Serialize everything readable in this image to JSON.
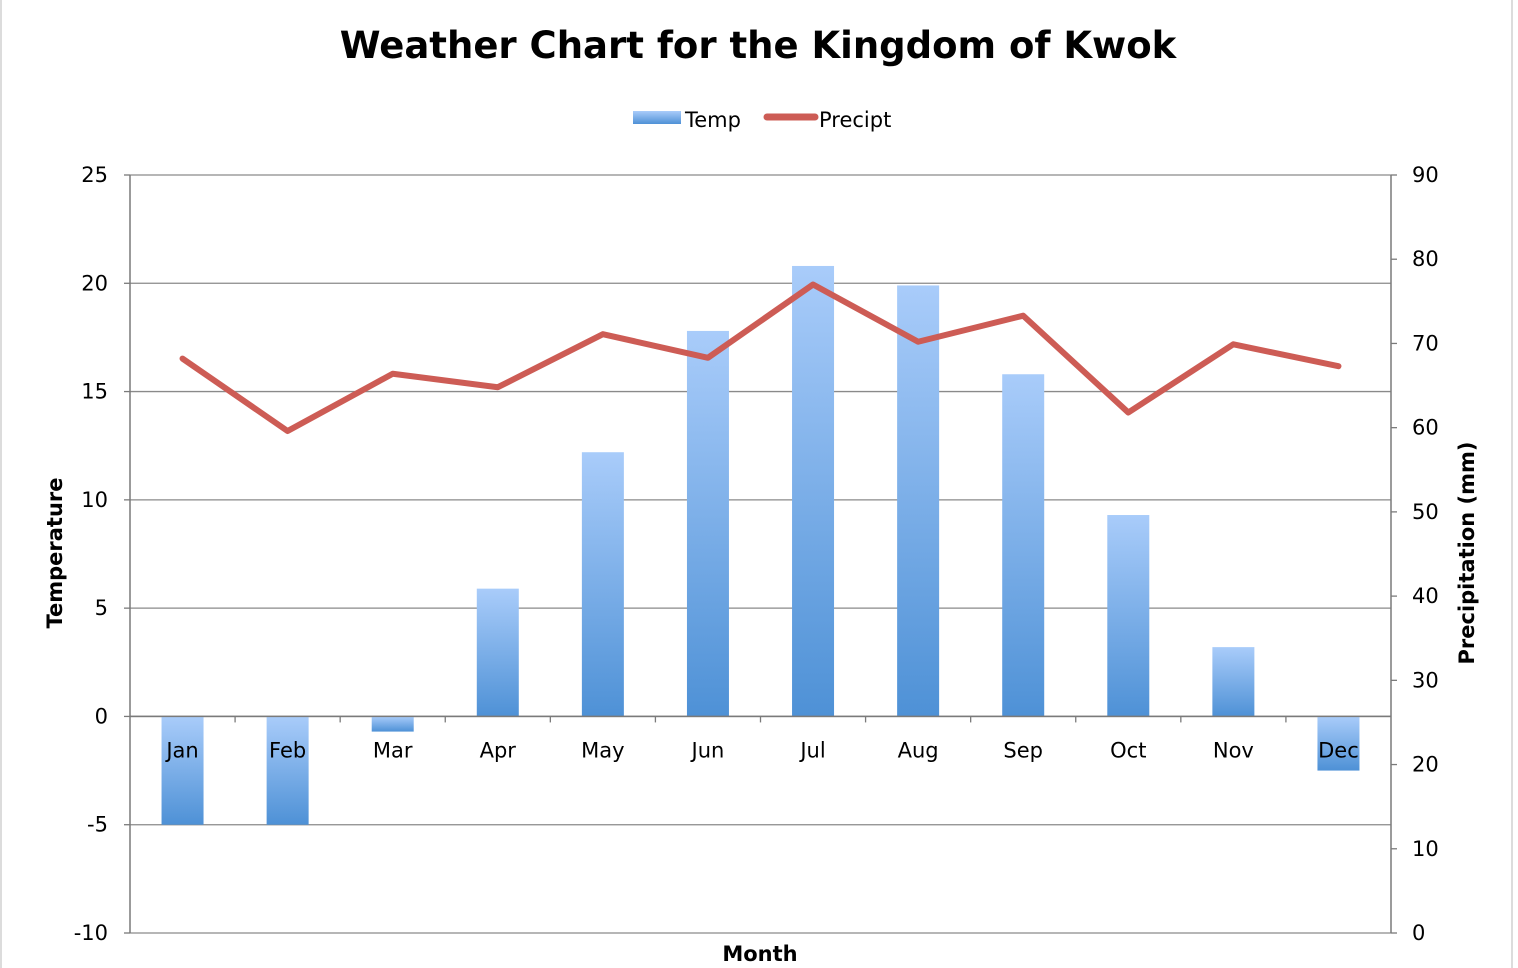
{
  "chart_data": {
    "type": "bar",
    "title": "Weather Chart for the Kingdom of Kwok",
    "xlabel": "Month",
    "ylabel": "Temperature",
    "y2label": "Precipitation (mm)",
    "categories": [
      "Jan",
      "Feb",
      "Mar",
      "Apr",
      "May",
      "Jun",
      "Jul",
      "Aug",
      "Sep",
      "Oct",
      "Nov",
      "Dec"
    ],
    "ylim": [
      -10,
      25
    ],
    "y2lim": [
      0,
      90
    ],
    "yticks": [
      25,
      20,
      15,
      10,
      5,
      0,
      -5,
      -10
    ],
    "y2ticks": [
      90,
      80,
      70,
      60,
      50,
      40,
      30,
      20,
      10,
      0
    ],
    "grid": true,
    "legend_position": "top-center",
    "series": [
      {
        "name": "Temp",
        "type": "bar",
        "axis": "left",
        "color": "#5B9BD5",
        "values": [
          -5.0,
          -5.0,
          -0.7,
          5.9,
          12.2,
          17.8,
          20.8,
          19.9,
          15.8,
          9.3,
          3.2,
          -2.5
        ]
      },
      {
        "name": "Precipt",
        "type": "line",
        "axis": "right",
        "color": "#CD5C55",
        "values": [
          68.2,
          59.6,
          66.4,
          64.8,
          71.1,
          68.3,
          77.0,
          70.2,
          73.3,
          61.8,
          69.9,
          67.3
        ]
      }
    ]
  }
}
